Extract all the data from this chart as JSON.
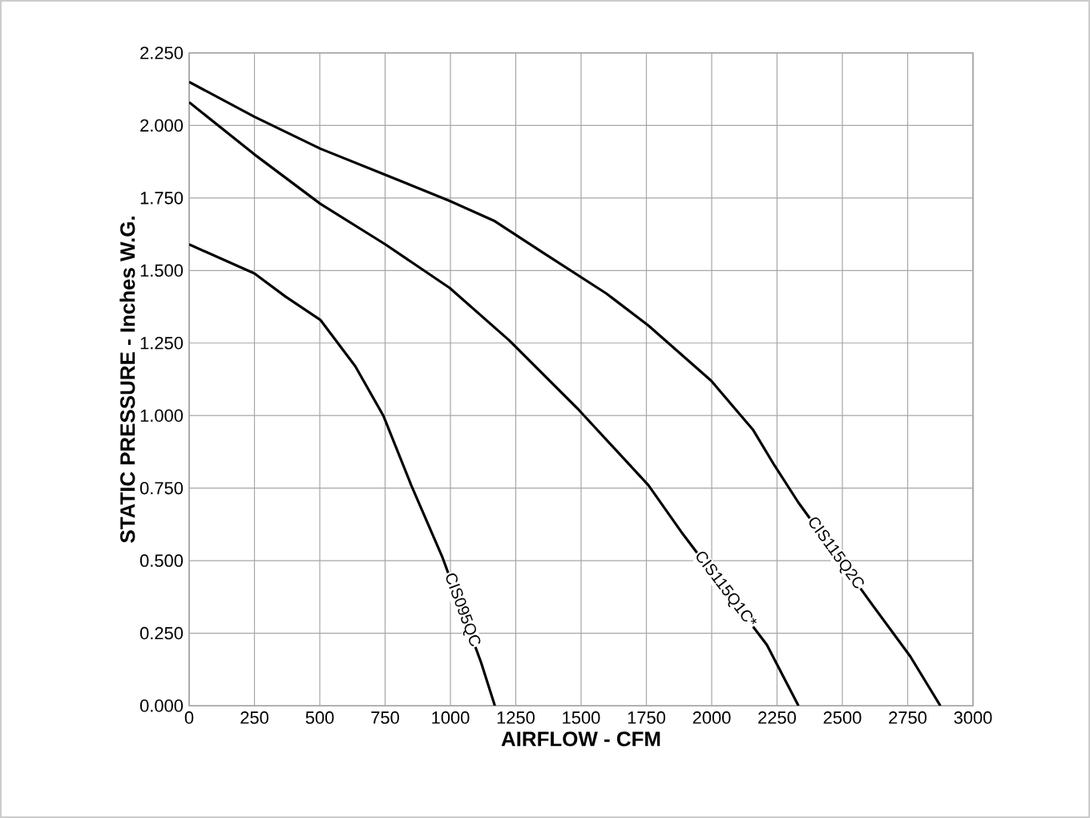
{
  "chart_data": {
    "type": "line",
    "xlabel": "AIRFLOW - CFM",
    "ylabel": "STATIC PRESSURE - Inches W.G.",
    "xlim": [
      0,
      3000
    ],
    "xticks": [
      0,
      250,
      500,
      750,
      1000,
      1250,
      1500,
      1750,
      2000,
      2250,
      2500,
      2750,
      3000
    ],
    "ylim": [
      0,
      2.25
    ],
    "yticks": [
      {
        "value": 0,
        "label": "0.000"
      },
      {
        "value": 0.25,
        "label": "0.250"
      },
      {
        "value": 0.5,
        "label": "0.500"
      },
      {
        "value": 0.75,
        "label": "0.750"
      },
      {
        "value": 1,
        "label": "1.000"
      },
      {
        "value": 1.25,
        "label": "1.250"
      },
      {
        "value": 1.5,
        "label": "1.500"
      },
      {
        "value": 1.75,
        "label": "1.750"
      },
      {
        "value": 2,
        "label": "2.000"
      },
      {
        "value": 2.25,
        "label": "2.250"
      }
    ],
    "grid": true,
    "legend": false,
    "marker": "none",
    "line_style": "solid",
    "series": [
      {
        "name": "CIS095QC",
        "color": "#000000",
        "x": [
          0,
          250,
          369,
          502,
          636,
          743,
          850,
          970,
          1117,
          1170
        ],
        "values": [
          1.59,
          1.49,
          1.41,
          1.33,
          1.17,
          1.0,
          0.76,
          0.51,
          0.15,
          0
        ]
      },
      {
        "name": "CIS115Q1C*",
        "color": "#000000",
        "x": [
          0,
          250,
          502,
          751,
          997,
          1224,
          1491,
          1758,
          1891,
          2211,
          2332
        ],
        "values": [
          2.08,
          1.9,
          1.73,
          1.59,
          1.44,
          1.26,
          1.02,
          0.76,
          0.59,
          0.21,
          0
        ]
      },
      {
        "name": "CIS115Q2C",
        "color": "#000000",
        "x": [
          0,
          250,
          502,
          751,
          997,
          1170,
          1357,
          1598,
          1758,
          1998,
          2159,
          2239,
          2332,
          2613,
          2760,
          2875
        ],
        "values": [
          2.15,
          2.03,
          1.92,
          1.83,
          1.74,
          1.67,
          1.56,
          1.42,
          1.31,
          1.12,
          0.95,
          0.83,
          0.7,
          0.35,
          0.17,
          0
        ]
      }
    ]
  }
}
